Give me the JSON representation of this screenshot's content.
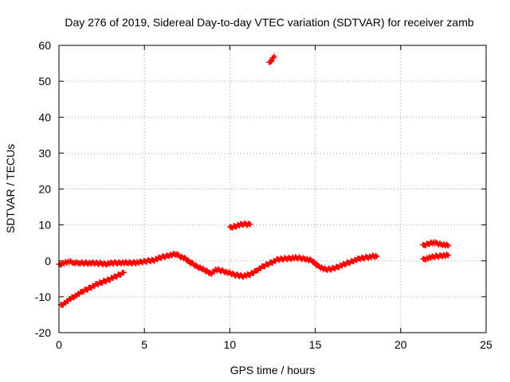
{
  "chart_data": {
    "type": "scatter",
    "title": "Day 276 of 2019, Sidereal Day-to-day VTEC variation (SDTVAR) for receiver zamb",
    "xlabel": "GPS time / hours",
    "ylabel": "SDTVAR / TECUs",
    "xlim": [
      0,
      25
    ],
    "ylim": [
      -20,
      60
    ],
    "xticks": [
      0,
      5,
      10,
      15,
      20,
      25
    ],
    "yticks": [
      -20,
      -10,
      0,
      10,
      20,
      30,
      40,
      50,
      60
    ],
    "grid": true,
    "marker": "+",
    "colors": {
      "series": "#ff0000",
      "axis": "#000000",
      "grid": "#a0a0a0"
    },
    "series": [
      {
        "name": "main track",
        "points": [
          [
            0.0,
            -1.2
          ],
          [
            0.3,
            -0.5
          ],
          [
            0.6,
            -0.3
          ],
          [
            0.9,
            -0.4
          ],
          [
            1.2,
            -0.6
          ],
          [
            1.6,
            -0.6
          ],
          [
            2.0,
            -0.7
          ],
          [
            2.4,
            -0.7
          ],
          [
            2.8,
            -0.8
          ],
          [
            3.2,
            -0.6
          ],
          [
            3.6,
            -0.5
          ],
          [
            4.0,
            -0.6
          ],
          [
            4.4,
            -0.5
          ],
          [
            4.8,
            -0.4
          ],
          [
            5.2,
            0.0
          ],
          [
            5.6,
            0.3
          ],
          [
            6.0,
            1.0
          ],
          [
            6.4,
            1.5
          ],
          [
            6.8,
            1.8
          ],
          [
            7.0,
            1.5
          ],
          [
            7.4,
            0.5
          ],
          [
            7.8,
            -0.8
          ],
          [
            8.2,
            -1.8
          ],
          [
            8.6,
            -2.8
          ],
          [
            8.9,
            -3.5
          ],
          [
            9.2,
            -2.5
          ],
          [
            9.6,
            -2.8
          ],
          [
            10.0,
            -3.5
          ],
          [
            10.4,
            -4.0
          ],
          [
            10.8,
            -4.2
          ],
          [
            11.2,
            -3.8
          ],
          [
            11.6,
            -2.5
          ],
          [
            12.0,
            -1.5
          ],
          [
            12.4,
            -0.5
          ],
          [
            12.8,
            0.3
          ],
          [
            13.2,
            0.6
          ],
          [
            13.6,
            0.8
          ],
          [
            14.0,
            0.8
          ],
          [
            14.4,
            0.6
          ],
          [
            14.8,
            0.0
          ],
          [
            15.2,
            -1.5
          ],
          [
            15.6,
            -2.5
          ],
          [
            16.0,
            -2.2
          ],
          [
            16.4,
            -1.5
          ],
          [
            16.8,
            -0.8
          ],
          [
            17.2,
            0.0
          ],
          [
            17.6,
            0.6
          ],
          [
            18.0,
            1.0
          ],
          [
            18.4,
            1.2
          ],
          [
            18.6,
            1.2
          ]
        ]
      },
      {
        "name": "lower track",
        "points": [
          [
            0.1,
            -12.5
          ],
          [
            0.4,
            -11.5
          ],
          [
            0.7,
            -10.5
          ],
          [
            1.0,
            -9.6
          ],
          [
            1.4,
            -8.5
          ],
          [
            1.8,
            -7.5
          ],
          [
            2.2,
            -6.6
          ],
          [
            2.6,
            -5.8
          ],
          [
            3.0,
            -5.0
          ],
          [
            3.4,
            -4.2
          ],
          [
            3.8,
            -3.2
          ]
        ]
      },
      {
        "name": "segment near 10 h",
        "points": [
          [
            10.0,
            9.2
          ],
          [
            10.4,
            9.8
          ],
          [
            10.8,
            10.2
          ],
          [
            11.2,
            10.2
          ]
        ]
      },
      {
        "name": "segment near 12.5 h",
        "points": [
          [
            12.3,
            55.0
          ],
          [
            12.45,
            56.0
          ],
          [
            12.6,
            57.0
          ]
        ]
      },
      {
        "name": "upper segment near 22 h",
        "points": [
          [
            21.3,
            4.2
          ],
          [
            21.7,
            5.0
          ],
          [
            22.0,
            5.0
          ],
          [
            22.4,
            4.6
          ],
          [
            22.8,
            4.2
          ]
        ]
      },
      {
        "name": "lower segment near 22 h",
        "points": [
          [
            21.3,
            0.3
          ],
          [
            21.6,
            0.8
          ],
          [
            22.0,
            1.2
          ],
          [
            22.4,
            1.5
          ],
          [
            22.8,
            1.5
          ]
        ]
      }
    ]
  }
}
